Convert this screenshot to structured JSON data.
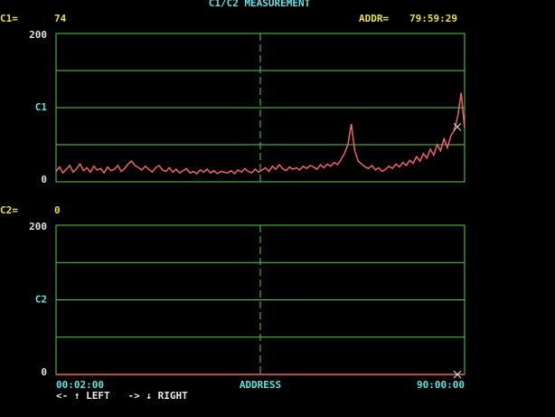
{
  "title": "C1/C2 MEASUREMENT",
  "address_label": "ADDR=",
  "address_value": "79:59:29",
  "instructions": "<- ↑ LEFT   -> ↓ RIGHT",
  "chart_data": [
    {
      "type": "line",
      "readout_label": "C1=",
      "readout_value": 74,
      "ylim": [
        0,
        200
      ],
      "yticks": [
        0,
        {
          "value": 100,
          "label": "C1"
        },
        200
      ],
      "gridlines": [
        50,
        100,
        150
      ],
      "xlim": [
        0,
        119
      ],
      "color": "#f06464",
      "grid_color": "#50d050",
      "values": [
        14,
        20,
        12,
        17,
        22,
        13,
        18,
        24,
        15,
        19,
        13,
        21,
        16,
        18,
        12,
        20,
        15,
        17,
        22,
        14,
        18,
        24,
        28,
        22,
        19,
        16,
        21,
        17,
        13,
        19,
        22,
        16,
        14,
        19,
        13,
        17,
        12,
        15,
        18,
        12,
        14,
        11,
        16,
        13,
        17,
        12,
        15,
        11,
        14,
        13,
        12,
        15,
        11,
        16,
        13,
        18,
        14,
        12,
        17,
        13,
        16,
        19,
        14,
        21,
        17,
        23,
        18,
        15,
        20,
        17,
        19,
        16,
        21,
        18,
        22,
        20,
        17,
        23,
        19,
        24,
        21,
        26,
        23,
        30,
        38,
        50,
        78,
        42,
        28,
        24,
        20,
        18,
        22,
        16,
        19,
        14,
        17,
        21,
        18,
        24,
        20,
        26,
        22,
        29,
        25,
        34,
        28,
        38,
        32,
        44,
        36,
        50,
        42,
        58,
        46,
        62,
        70,
        88,
        120,
        72
      ]
    },
    {
      "type": "line",
      "readout_label": "C2=",
      "readout_value": 0,
      "ylim": [
        0,
        200
      ],
      "yticks": [
        0,
        {
          "value": 100,
          "label": "C2"
        },
        200
      ],
      "gridlines": [
        50,
        100,
        150
      ],
      "xlim": [
        0,
        1
      ],
      "xticks": [
        {
          "value": 0,
          "label": "00:02:00"
        },
        {
          "value": 1,
          "label": "90:00:00"
        }
      ],
      "xlabel": "ADDRESS",
      "color": "#f06464",
      "grid_color": "#50d050",
      "values": [
        0,
        0
      ]
    }
  ]
}
